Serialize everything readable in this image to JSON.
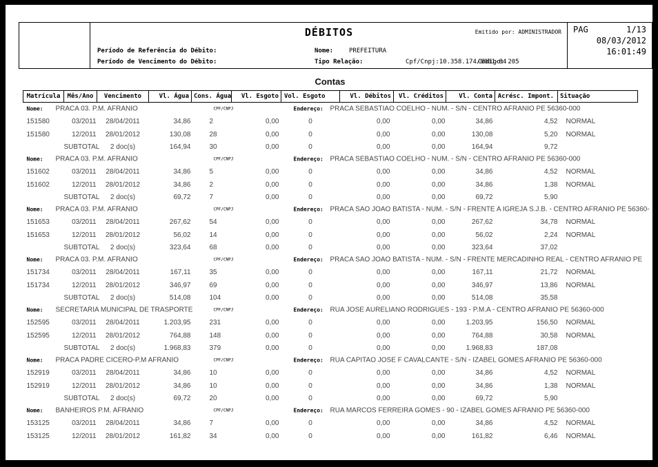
{
  "colors": {
    "frame": "#000000",
    "page": "#ffffff",
    "text": "#000000",
    "data_text": "#444444"
  },
  "header": {
    "title": "DÉBITOS",
    "emitted_by_label": "Emitido por:",
    "emitted_by": "ADMINISTRADOR",
    "pag_label": "PAG",
    "page_value": "1/13",
    "date": "08/03/2012",
    "time": "16:01:49",
    "ref_period_label": "Período de Referência do Débito:",
    "due_period_label": "Período de Vencimento do Débito:",
    "name_label": "Nome:",
    "name_value": "PREFEITURA",
    "relation_label": "Tipo Relação:",
    "cpf_cnpj": "Cpf/Cnpj:10.358.174/0001-84",
    "code": "Código: 205"
  },
  "section_title": "Contas",
  "table": {
    "columns": [
      "Matrícula",
      "Mês/Ano",
      "Vencimento",
      "Vl. Água",
      "Cons. Água",
      "Vl. Esgoto",
      "Vol. Esgoto",
      "Vl. Débitos",
      "Vl. Créditos",
      "Vl. Conta",
      "Acrésc. Impont.",
      "Situação"
    ],
    "name_label": "Nome:",
    "cpfcnpj_label": "CPF/CNPJ",
    "address_label": "Endereço:",
    "subtotal_label": "SUBTOTAL",
    "groups": [
      {
        "name": "PRACA 03.  P.M. AFRANIO",
        "address": "PRACA SEBASTIAO COELHO - NUM. - S/N - CENTRO AFRANIO PE 56360-000",
        "rows": [
          [
            "151580",
            "03/2011",
            "28/04/2011",
            "34,86",
            "2",
            "0,00",
            "0",
            "0,00",
            "0,00",
            "34,86",
            "4,52",
            "NORMAL"
          ],
          [
            "151580",
            "12/2011",
            "28/01/2012",
            "130,08",
            "28",
            "0,00",
            "0",
            "0,00",
            "0,00",
            "130,08",
            "5,20",
            "NORMAL"
          ]
        ],
        "subtotal": [
          "2 doc(s)",
          "164,94",
          "30",
          "0,00",
          "0",
          "0,00",
          "0,00",
          "164,94",
          "9,72"
        ]
      },
      {
        "name": "PRACA 03.  P.M. AFRANIO",
        "address": "PRACA SEBASTIAO COELHO - NUM. - S/N - CENTRO AFRANIO PE 56360-000",
        "rows": [
          [
            "151602",
            "03/2011",
            "28/04/2011",
            "34,86",
            "5",
            "0,00",
            "0",
            "0,00",
            "0,00",
            "34,86",
            "4,52",
            "NORMAL"
          ],
          [
            "151602",
            "12/2011",
            "28/01/2012",
            "34,86",
            "2",
            "0,00",
            "0",
            "0,00",
            "0,00",
            "34,86",
            "1,38",
            "NORMAL"
          ]
        ],
        "subtotal": [
          "2 doc(s)",
          "69,72",
          "7",
          "0,00",
          "0",
          "0,00",
          "0,00",
          "69,72",
          "5,90"
        ]
      },
      {
        "name": "PRACA 03.  P.M. AFRANIO",
        "address": "PRACA SAO JOAO BATISTA - NUM. - S/N - FRENTE A IGREJA S.J.B. - CENTRO AFRANIO PE 56360-",
        "rows": [
          [
            "151653",
            "03/2011",
            "28/04/2011",
            "267,62",
            "54",
            "0,00",
            "0",
            "0,00",
            "0,00",
            "267,62",
            "34,78",
            "NORMAL"
          ],
          [
            "151653",
            "12/2011",
            "28/01/2012",
            "56,02",
            "14",
            "0,00",
            "0",
            "0,00",
            "0,00",
            "56,02",
            "2,24",
            "NORMAL"
          ]
        ],
        "subtotal": [
          "2 doc(s)",
          "323,64",
          "68",
          "0,00",
          "0",
          "0,00",
          "0,00",
          "323,64",
          "37,02"
        ]
      },
      {
        "name": "PRACA 03.  P.M. AFRANIO",
        "address": "PRACA SAO JOAO BATISTA - NUM. - S/N - FRENTE MERCADINHO REAL - CENTRO AFRANIO PE",
        "rows": [
          [
            "151734",
            "03/2011",
            "28/04/2011",
            "167,11",
            "35",
            "0,00",
            "0",
            "0,00",
            "0,00",
            "167,11",
            "21,72",
            "NORMAL"
          ],
          [
            "151734",
            "12/2011",
            "28/01/2012",
            "346,97",
            "69",
            "0,00",
            "0",
            "0,00",
            "0,00",
            "346,97",
            "13,86",
            "NORMAL"
          ]
        ],
        "subtotal": [
          "2 doc(s)",
          "514,08",
          "104",
          "0,00",
          "0",
          "0,00",
          "0,00",
          "514,08",
          "35,58"
        ]
      },
      {
        "name": "SECRETARIA MUNICIPAL DE TRASPORTE",
        "address": "RUA JOSE AURELIANO RODRIGUES - 193 - P.M.A - CENTRO AFRANIO PE 56360-000",
        "rows": [
          [
            "152595",
            "03/2011",
            "28/04/2011",
            "1.203,95",
            "231",
            "0,00",
            "0",
            "0,00",
            "0,00",
            "1.203,95",
            "156,50",
            "NORMAL"
          ],
          [
            "152595",
            "12/2011",
            "28/01/2012",
            "764,88",
            "148",
            "0,00",
            "0",
            "0,00",
            "0,00",
            "764,88",
            "30,58",
            "NORMAL"
          ]
        ],
        "subtotal": [
          "2 doc(s)",
          "1.968,83",
          "379",
          "0,00",
          "0",
          "0,00",
          "0,00",
          "1.968,83",
          "187,08"
        ]
      },
      {
        "name": "PRACA PADRE CICERO-P.M AFRANIO",
        "address": "RUA CAPITAO JOSE F CAVALCANTE - S/N - IZABEL GOMES AFRANIO PE 56360-000",
        "rows": [
          [
            "152919",
            "03/2011",
            "28/04/2011",
            "34,86",
            "10",
            "0,00",
            "0",
            "0,00",
            "0,00",
            "34,86",
            "4,52",
            "NORMAL"
          ],
          [
            "152919",
            "12/2011",
            "28/01/2012",
            "34,86",
            "10",
            "0,00",
            "0",
            "0,00",
            "0,00",
            "34,86",
            "1,38",
            "NORMAL"
          ]
        ],
        "subtotal": [
          "2 doc(s)",
          "69,72",
          "20",
          "0,00",
          "0",
          "0,00",
          "0,00",
          "69,72",
          "5,90"
        ]
      },
      {
        "name": "BANHEIROS P.M. AFRANIO",
        "address": "RUA MARCOS FERREIRA GOMES - 90 - IZABEL GOMES AFRANIO PE 56360-000",
        "rows": [
          [
            "153125",
            "03/2011",
            "28/04/2011",
            "34,86",
            "7",
            "0,00",
            "0",
            "0,00",
            "0,00",
            "34,86",
            "4,52",
            "NORMAL"
          ],
          [
            "153125",
            "12/2011",
            "28/01/2012",
            "161,82",
            "34",
            "0,00",
            "0",
            "0,00",
            "0,00",
            "161,82",
            "6,46",
            "NORMAL"
          ]
        ],
        "subtotal": null
      }
    ]
  }
}
